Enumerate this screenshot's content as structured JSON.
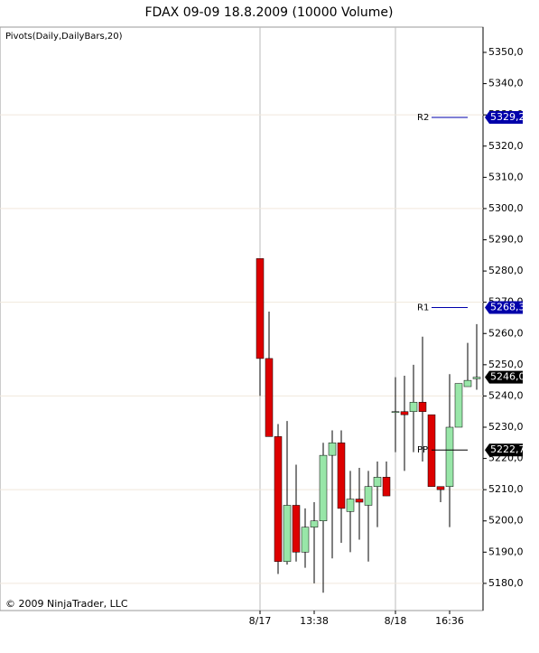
{
  "chart_data": {
    "type": "candlestick",
    "title": "FDAX 09-09  18.8.2009 (10000 Volume)",
    "indicator": "Pivots(Daily,DailyBars,20)",
    "copyright": "© 2009 NinjaTrader, LLC",
    "categories": [
      "8/17",
      null,
      null,
      null,
      null,
      null,
      "13:38",
      null,
      null,
      null,
      null,
      null,
      null,
      null,
      null,
      "8/18",
      null,
      null,
      null,
      null,
      null,
      "16:36",
      null,
      null,
      null
    ],
    "open": [
      5284,
      5252,
      5227,
      5187,
      5205,
      5190,
      5198,
      5200,
      5221,
      5225,
      5203,
      5207,
      5205,
      5211,
      5214,
      5235,
      5235,
      5235,
      5238,
      5234,
      5211,
      5211,
      5230,
      5243,
      5245.5
    ],
    "high": [
      5284,
      5267,
      5231,
      5232,
      5218,
      5204,
      5206,
      5225,
      5229,
      5229,
      5216,
      5217,
      5216,
      5219,
      5219,
      5246,
      5246.5,
      5250,
      5259,
      5234,
      5211,
      5247,
      5244,
      5257,
      5263
    ],
    "low": [
      5240,
      5227,
      5183,
      5186,
      5187,
      5185,
      5180,
      5177,
      5188,
      5193,
      5190,
      5194,
      5187,
      5198,
      5208,
      5222,
      5216,
      5222,
      5219,
      5211,
      5206,
      5198,
      5230,
      5243,
      5242
    ],
    "close": [
      5252,
      5227,
      5187,
      5205,
      5190,
      5198,
      5200,
      5221,
      5225,
      5204,
      5207,
      5206,
      5211,
      5214,
      5208,
      5235,
      5234,
      5238,
      5235,
      5211,
      5210,
      5230,
      5244,
      5245,
      5246
    ],
    "up_color": "#98e6a8",
    "down_color": "#dd0000",
    "ylim": [
      5171.3,
      5358.1
    ],
    "yticks": [
      {
        "value": 5180,
        "label": "5180,0"
      },
      {
        "value": 5190,
        "label": "5190,0"
      },
      {
        "value": 5200,
        "label": "5200,0"
      },
      {
        "value": 5210,
        "label": "5210,0"
      },
      {
        "value": 5220,
        "label": "5220,0"
      },
      {
        "value": 5230,
        "label": "5230,0"
      },
      {
        "value": 5240,
        "label": "5240,0"
      },
      {
        "value": 5250,
        "label": "5250,0"
      },
      {
        "value": 5260,
        "label": "5260,0"
      },
      {
        "value": 5270,
        "label": "5270,0"
      },
      {
        "value": 5280,
        "label": "5280,0"
      },
      {
        "value": 5290,
        "label": "5290,0"
      },
      {
        "value": 5300,
        "label": "5300,0"
      },
      {
        "value": 5310,
        "label": "5310,0"
      },
      {
        "value": 5320,
        "label": "5320,0"
      },
      {
        "value": 5330,
        "label": "5330,0"
      },
      {
        "value": 5340,
        "label": "5340,0"
      },
      {
        "value": 5350,
        "label": "5350,0"
      }
    ],
    "gridlines": [
      5180,
      5210,
      5240,
      5270,
      5300,
      5330
    ],
    "pivots": [
      {
        "name": "R2",
        "value": 5329.2,
        "label": "5329,2",
        "color": "#0000aa"
      },
      {
        "name": "R1",
        "value": 5268.3,
        "label": "5268,3",
        "color": "#0000aa"
      },
      {
        "name": "PP",
        "value": 5222.7,
        "label": "5222,7",
        "color": "#000000"
      }
    ],
    "last_price": {
      "value": 5246.0,
      "label": "5246,0"
    }
  }
}
